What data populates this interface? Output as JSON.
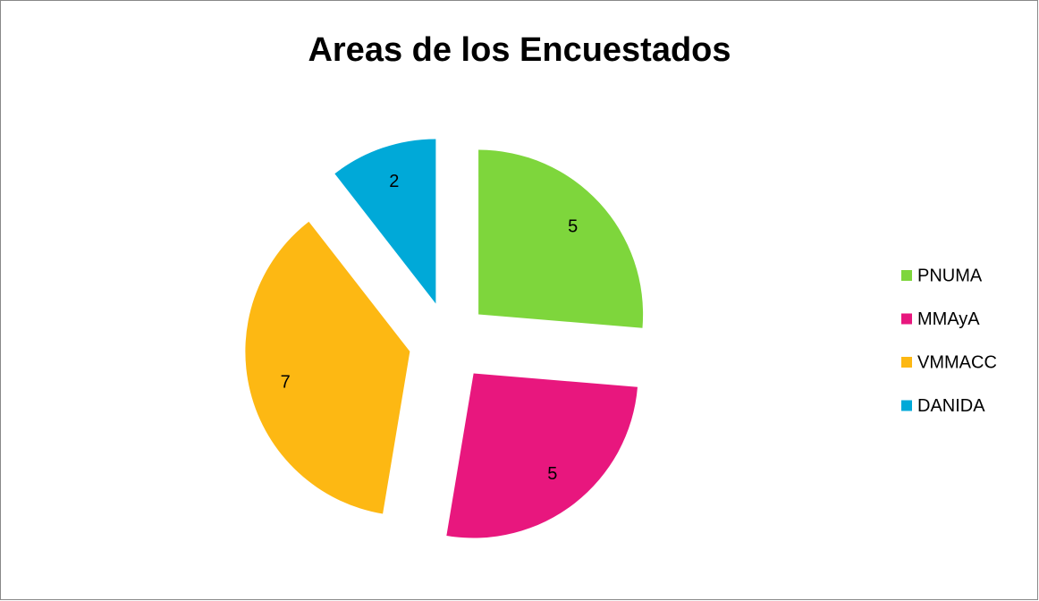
{
  "chart_data": {
    "type": "pie",
    "title": "Areas de los Encuestados",
    "categories": [
      "PNUMA",
      "MMAyA",
      "VMMACC",
      "DANIDA"
    ],
    "values": [
      5,
      5,
      7,
      2
    ],
    "colors": [
      "#7ed63c",
      "#e8177e",
      "#fdb813",
      "#00a9d8"
    ],
    "legend": "right"
  }
}
